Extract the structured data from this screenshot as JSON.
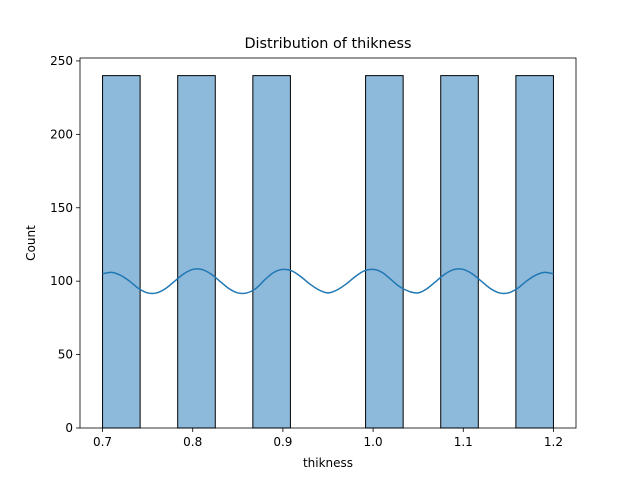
{
  "chart_data": {
    "type": "bar",
    "title": "Distribution of thikness",
    "xlabel": "thikness",
    "ylabel": "Count",
    "xlim": [
      0.675,
      1.225
    ],
    "ylim": [
      0,
      252
    ],
    "xticks": [
      0.7,
      0.8,
      0.9,
      1.0,
      1.1,
      1.2
    ],
    "xtick_labels": [
      "0.7",
      "0.8",
      "0.9",
      "1.0",
      "1.1",
      "1.2"
    ],
    "yticks": [
      0,
      50,
      100,
      150,
      200,
      250
    ],
    "ytick_labels": [
      "0",
      "50",
      "100",
      "150",
      "200",
      "250"
    ],
    "bin_edges": [
      0.7,
      0.74167,
      0.78333,
      0.825,
      0.86667,
      0.90833,
      0.95,
      0.99167,
      1.03333,
      1.075,
      1.11667,
      1.15833,
      1.2
    ],
    "values": [
      240,
      0,
      240,
      0,
      240,
      0,
      0,
      240,
      0,
      240,
      0,
      240
    ],
    "kde": {
      "x": [
        0.7,
        0.71,
        0.72,
        0.73,
        0.74,
        0.75,
        0.76,
        0.77,
        0.78,
        0.79,
        0.8,
        0.81,
        0.82,
        0.83,
        0.84,
        0.85,
        0.86,
        0.87,
        0.88,
        0.89,
        0.9,
        0.91,
        0.92,
        0.93,
        0.94,
        0.95,
        0.96,
        0.97,
        0.98,
        0.99,
        1.0,
        1.01,
        1.02,
        1.03,
        1.04,
        1.05,
        1.06,
        1.07,
        1.08,
        1.09,
        1.1,
        1.11,
        1.12,
        1.13,
        1.14,
        1.15,
        1.16,
        1.17,
        1.18,
        1.19,
        1.2
      ],
      "y": [
        105,
        106,
        104,
        100,
        95,
        92,
        92,
        95,
        100,
        105,
        108,
        108,
        105,
        100,
        95,
        92,
        92,
        95,
        101,
        106,
        108,
        107,
        103,
        98,
        94,
        92,
        94,
        98,
        103,
        107,
        108,
        106,
        101,
        96,
        93,
        92,
        95,
        100,
        105,
        108,
        108,
        105,
        100,
        95,
        92,
        92,
        95,
        100,
        104,
        106,
        105
      ]
    },
    "colors": {
      "bar_fill": "#8db9da",
      "bar_edge": "#000000",
      "kde_line": "#1f77b4"
    },
    "grid": false,
    "legend": "none"
  }
}
